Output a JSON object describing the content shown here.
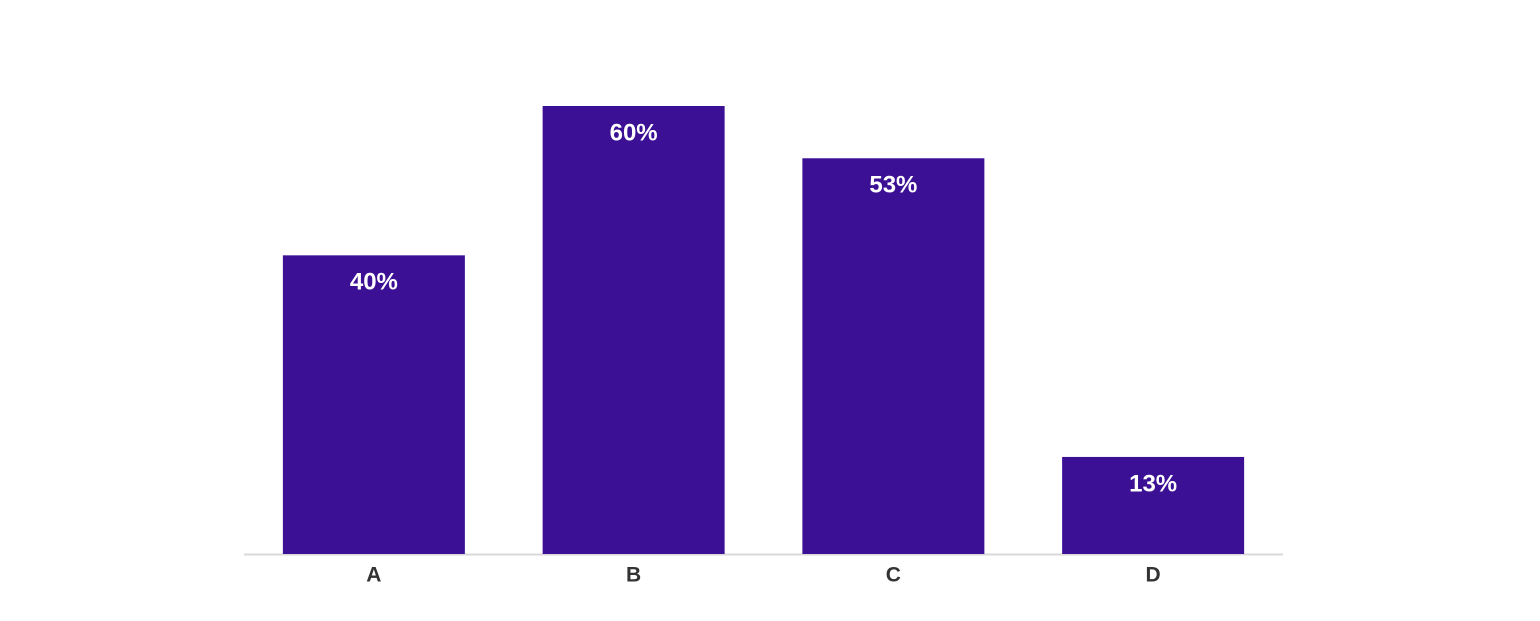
{
  "chart_data": {
    "type": "bar",
    "categories": [
      "A",
      "B",
      "C",
      "D"
    ],
    "values": [
      40,
      60,
      53,
      13
    ],
    "value_labels": [
      "40%",
      "60%",
      "53%",
      "13%"
    ],
    "color": "#3c1094"
  }
}
